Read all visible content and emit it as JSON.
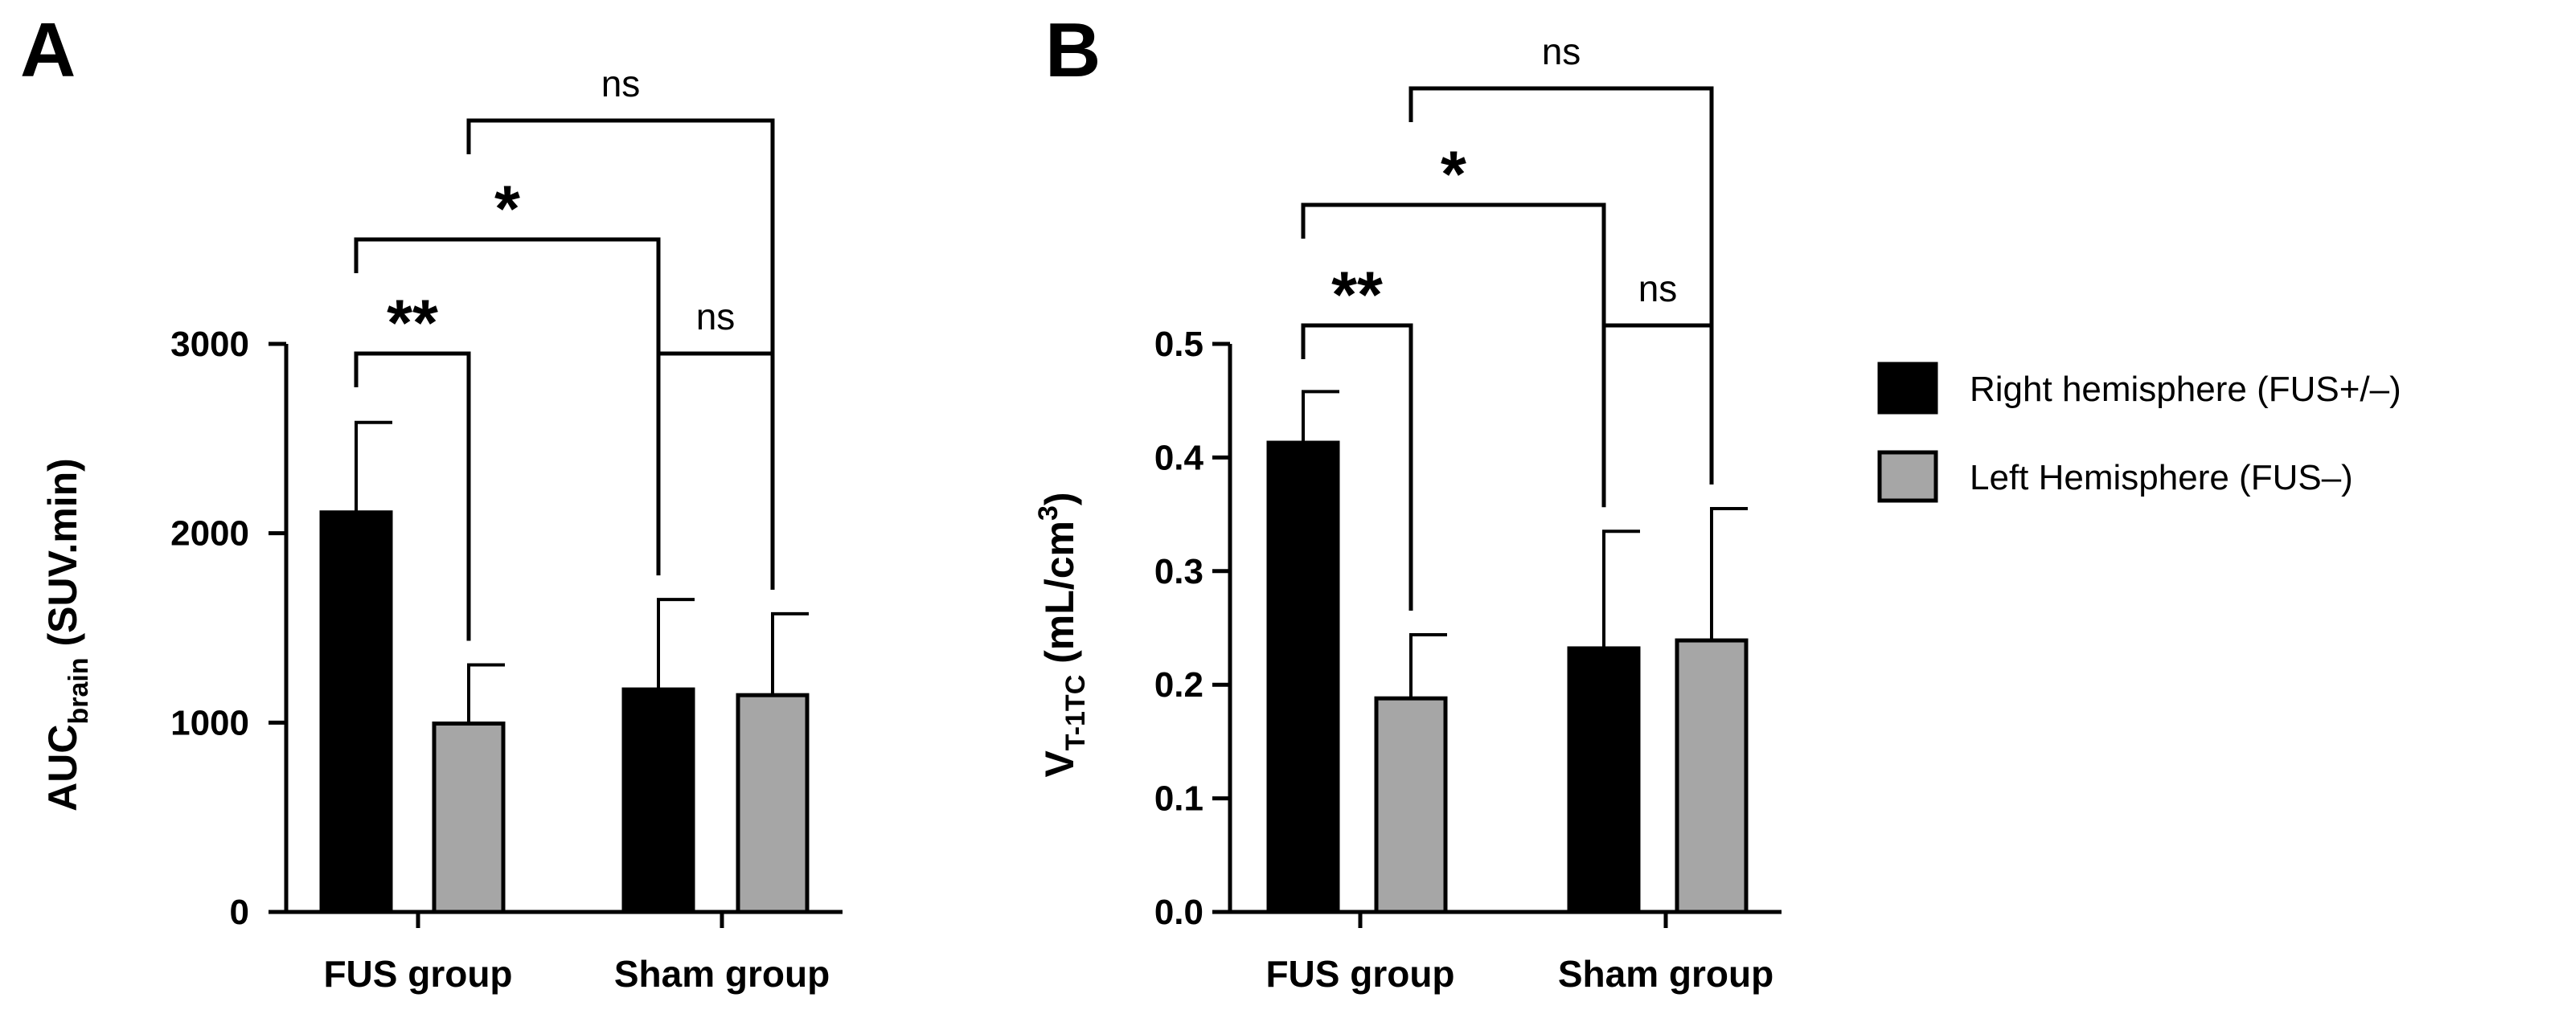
{
  "chart_data": [
    {
      "panel": "A",
      "type": "bar",
      "categories": [
        "FUS group",
        "Sham group"
      ],
      "series": [
        {
          "name": "Right hemisphere (FUS+/–)",
          "values": [
            2110,
            1175
          ],
          "errors": [
            475,
            475
          ]
        },
        {
          "name": "Left Hemisphere (FUS–)",
          "values": [
            995,
            1145
          ],
          "errors": [
            310,
            430
          ]
        }
      ],
      "ylabel": {
        "main": "AUC",
        "sub": "brain",
        "rest": " (SUV.min)"
      },
      "ylim": [
        0,
        3000
      ],
      "yticks": [
        "0",
        "1000",
        "2000",
        "3000"
      ],
      "ytick_values": [
        0,
        1000,
        2000,
        3000
      ],
      "significance": [
        {
          "label": "**",
          "from": [
            0,
            0
          ],
          "to": [
            0,
            1
          ],
          "level": 1
        },
        {
          "label": "ns",
          "from": [
            1,
            0
          ],
          "to": [
            1,
            1
          ],
          "level": 1
        },
        {
          "label": "*",
          "from": [
            0,
            0
          ],
          "to": [
            1,
            0
          ],
          "level": 2
        },
        {
          "label": "ns",
          "from": [
            0,
            1
          ],
          "to": [
            1,
            1
          ],
          "level": 3
        }
      ]
    },
    {
      "panel": "B",
      "type": "bar",
      "categories": [
        "FUS group",
        "Sham group"
      ],
      "series": [
        {
          "name": "Right hemisphere (FUS+/–)",
          "values": [
            0.413,
            0.232
          ],
          "errors": [
            0.045,
            0.103
          ]
        },
        {
          "name": "Left Hemisphere (FUS–)",
          "values": [
            0.188,
            0.239
          ],
          "errors": [
            0.056,
            0.116
          ]
        }
      ],
      "ylabel": {
        "main": "V",
        "sub": "T-1TC",
        "rest": " (mL/cm",
        "sup": "3",
        "end": ")"
      },
      "ylim": [
        0,
        0.5
      ],
      "yticks": [
        "0.0",
        "0.1",
        "0.2",
        "0.3",
        "0.4",
        "0.5"
      ],
      "ytick_values": [
        0,
        0.1,
        0.2,
        0.3,
        0.4,
        0.5
      ],
      "significance": [
        {
          "label": "**",
          "from": [
            0,
            0
          ],
          "to": [
            0,
            1
          ],
          "level": 1
        },
        {
          "label": "ns",
          "from": [
            1,
            0
          ],
          "to": [
            1,
            1
          ],
          "level": 1
        },
        {
          "label": "*",
          "from": [
            0,
            0
          ],
          "to": [
            1,
            0
          ],
          "level": 2
        },
        {
          "label": "ns",
          "from": [
            0,
            1
          ],
          "to": [
            1,
            1
          ],
          "level": 3
        }
      ]
    }
  ],
  "legend": {
    "placement": "right",
    "entries": [
      {
        "label": "Right hemisphere (FUS+/–)",
        "color": "#000000"
      },
      {
        "label": "Left Hemisphere (FUS–)",
        "color": "#a6a6a6"
      }
    ]
  },
  "colors": {
    "series_0": "#000000",
    "series_1": "#a6a6a6",
    "stroke": "#000000"
  }
}
